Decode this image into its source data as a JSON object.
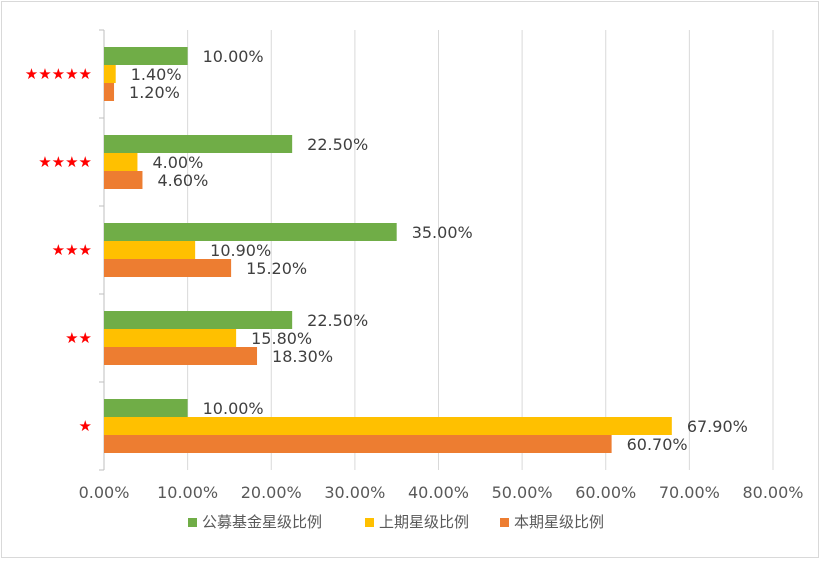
{
  "chart_data": {
    "type": "bar",
    "orientation": "horizontal",
    "categories": [
      "★★★★★",
      "★★★★",
      "★★★",
      "★★",
      "★"
    ],
    "series": [
      {
        "name": "公募基金星级比例",
        "color": "#70ad47",
        "values": [
          10.0,
          22.5,
          35.0,
          22.5,
          10.0
        ],
        "labels": [
          "10.00%",
          "22.50%",
          "35.00%",
          "22.50%",
          "10.00%"
        ]
      },
      {
        "name": "上期星级比例",
        "color": "#ffc000",
        "values": [
          1.4,
          4.0,
          10.9,
          15.8,
          67.9
        ],
        "labels": [
          "1.40%",
          "4.00%",
          "10.90%",
          "15.80%",
          "67.90%"
        ]
      },
      {
        "name": "本期星级比例",
        "color": "#ed7d31",
        "values": [
          1.2,
          4.6,
          15.2,
          18.3,
          60.7
        ],
        "labels": [
          "1.20%",
          "4.60%",
          "15.20%",
          "18.30%",
          "60.70%"
        ]
      }
    ],
    "x_ticks": [
      "0.00%",
      "10.00%",
      "20.00%",
      "30.00%",
      "40.00%",
      "50.00%",
      "60.00%",
      "70.00%",
      "80.00%"
    ],
    "xlim": [
      0,
      80
    ],
    "title": "",
    "xlabel": "",
    "ylabel": "",
    "grid": true,
    "legend_position": "bottom",
    "category_label_color": "#ff0000",
    "gridline_color": "#d9d9d9"
  }
}
